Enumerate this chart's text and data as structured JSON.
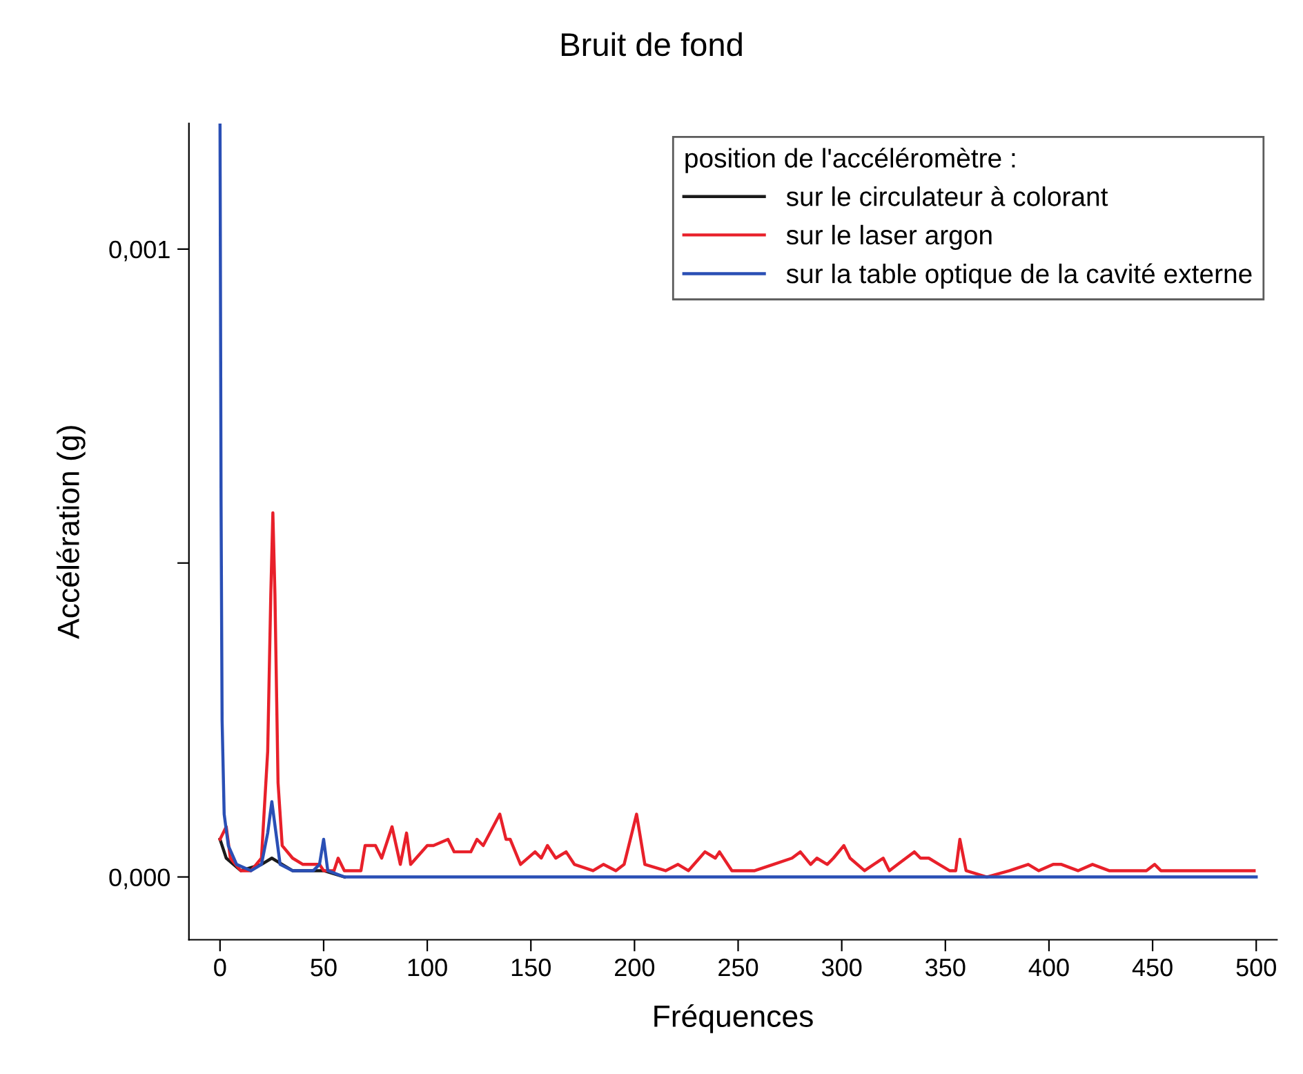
{
  "chart_data": {
    "type": "line",
    "title": "Bruit de fond",
    "xlabel": "Fréquences",
    "ylabel": "Accélération (g)",
    "legend_title": "position de l'accéléromètre :",
    "legend": "top right",
    "grid": false,
    "marker": "none",
    "line_style": "solid",
    "xlim": [
      -15,
      510
    ],
    "xticks": [
      0,
      50,
      100,
      150,
      200,
      250,
      300,
      350,
      400,
      450,
      500
    ],
    "ylim": [
      -0.0001,
      0.0012
    ],
    "yticks": [
      {
        "value": 0,
        "label": "0,000"
      },
      {
        "value": 0.0005,
        "label": null
      },
      {
        "value": 0.001,
        "label": "0,001"
      }
    ],
    "series": [
      {
        "name": "sur le circulateur à colorant",
        "color": "#1a1a1a",
        "x": [
          0,
          3,
          10,
          20,
          25,
          30,
          35,
          50,
          60
        ],
        "values": [
          6e-05,
          3e-05,
          1e-05,
          2e-05,
          3e-05,
          2e-05,
          1e-05,
          1e-05,
          0
        ]
      },
      {
        "name": "sur le laser argon",
        "color": "#e8202a",
        "x": [
          0,
          3,
          5,
          10,
          15,
          20,
          23,
          24.5,
          25.5,
          26.5,
          28,
          30,
          35,
          40,
          45,
          48,
          50,
          55,
          57,
          60,
          68,
          70,
          75,
          78,
          83,
          87,
          90,
          92,
          100,
          103,
          110,
          113,
          121,
          124,
          127,
          135,
          138,
          140,
          145,
          152,
          155,
          158,
          162,
          167,
          171,
          180,
          185,
          191,
          195,
          201,
          205,
          215,
          221,
          226,
          234,
          239,
          241,
          247,
          258,
          267,
          276,
          280,
          285,
          288,
          293,
          296,
          301,
          304,
          311,
          320,
          323,
          327,
          335,
          338,
          342,
          347,
          352,
          355,
          357,
          360,
          370,
          381,
          390,
          395,
          402,
          406,
          414,
          421,
          429,
          438,
          447,
          451,
          454,
          462,
          466,
          484,
          499
        ],
        "values": [
          6e-05,
          8e-05,
          3e-05,
          1e-05,
          1e-05,
          3e-05,
          0.0002,
          0.00045,
          0.00058,
          0.00045,
          0.00015,
          5e-05,
          3e-05,
          2e-05,
          2e-05,
          2e-05,
          1e-05,
          1e-05,
          3e-05,
          1e-05,
          1e-05,
          5e-05,
          5e-05,
          3e-05,
          8e-05,
          2e-05,
          7e-05,
          2e-05,
          5e-05,
          5e-05,
          6e-05,
          4e-05,
          4e-05,
          6e-05,
          5e-05,
          0.0001,
          6e-05,
          6e-05,
          2e-05,
          4e-05,
          3e-05,
          5e-05,
          3e-05,
          4e-05,
          2e-05,
          1e-05,
          2e-05,
          1e-05,
          2e-05,
          0.0001,
          2e-05,
          1e-05,
          2e-05,
          1e-05,
          4e-05,
          3e-05,
          4e-05,
          1e-05,
          1e-05,
          2e-05,
          3e-05,
          4e-05,
          2e-05,
          3e-05,
          2e-05,
          3e-05,
          5e-05,
          3e-05,
          1e-05,
          3e-05,
          1e-05,
          2e-05,
          4e-05,
          3e-05,
          3e-05,
          2e-05,
          1e-05,
          1e-05,
          6e-05,
          1e-05,
          0,
          1e-05,
          2e-05,
          1e-05,
          2e-05,
          2e-05,
          1e-05,
          2e-05,
          1e-05,
          1e-05,
          1e-05,
          2e-05,
          1e-05,
          1e-05,
          1e-05,
          1e-05,
          1e-05
        ]
      },
      {
        "name": "sur la table optique de la cavité externe",
        "color": "#2a4fb5",
        "x": [
          0,
          0.5,
          1,
          2,
          4,
          8,
          15,
          20,
          23,
          25,
          27,
          29,
          35,
          45,
          48,
          50,
          52,
          60,
          100,
          200,
          300,
          400,
          500
        ],
        "values": [
          0.0012,
          0.0006,
          0.00025,
          0.0001,
          5e-05,
          2e-05,
          1e-05,
          2e-05,
          7e-05,
          0.00012,
          7e-05,
          2e-05,
          1e-05,
          1e-05,
          2e-05,
          6e-05,
          1e-05,
          0,
          0,
          0,
          0,
          0,
          0
        ]
      }
    ]
  }
}
